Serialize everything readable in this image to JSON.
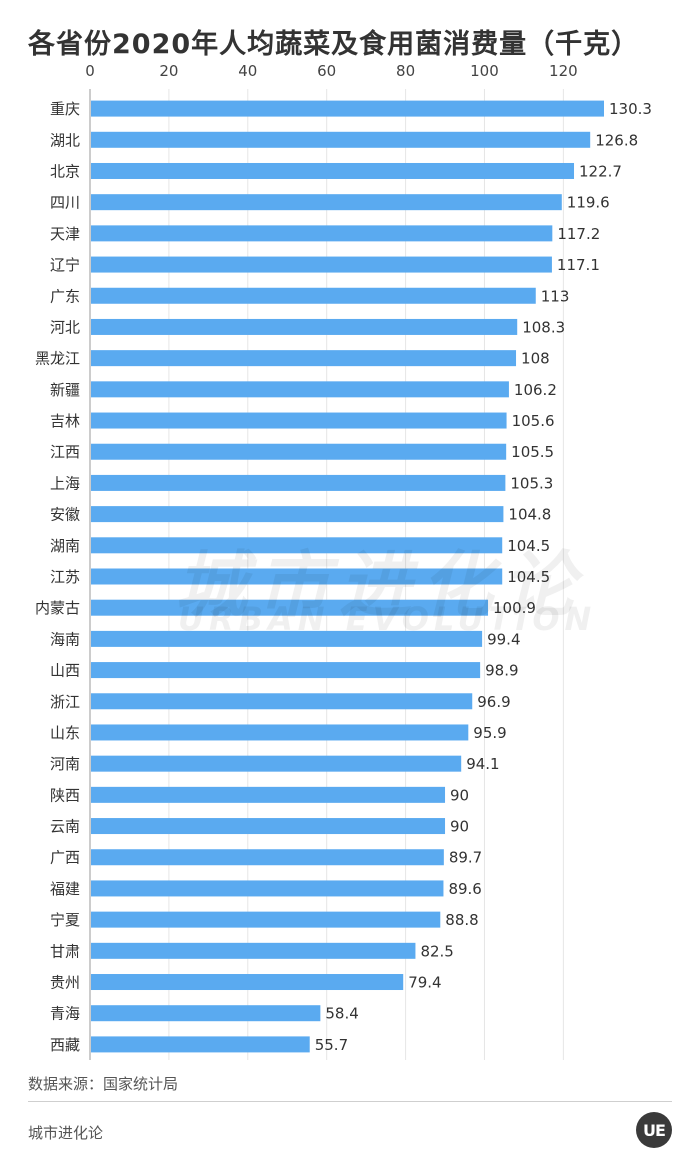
{
  "title": "各省份2020年人均蔬菜及食用菌消费量（千克）",
  "source": "数据来源：国家统计局",
  "brand": "城市进化论",
  "logo_text": "UE",
  "watermark": {
    "cn": "城市进化论",
    "en": "URBAN EVOLUTION"
  },
  "colors": {
    "bar": "#5aaaf0",
    "grid": "#e6e6e6",
    "text": "#333333"
  },
  "chart_data": {
    "type": "bar",
    "orientation": "horizontal",
    "title": "各省份2020年人均蔬菜及食用菌消费量（千克）",
    "xlim": [
      0,
      130.3
    ],
    "xticks": [
      0,
      20,
      40,
      60,
      80,
      100,
      120
    ],
    "axis_position": "top",
    "grid": true,
    "categories": [
      "重庆",
      "湖北",
      "北京",
      "四川",
      "天津",
      "辽宁",
      "广东",
      "河北",
      "黑龙江",
      "新疆",
      "吉林",
      "江西",
      "上海",
      "安徽",
      "湖南",
      "江苏",
      "内蒙古",
      "海南",
      "山西",
      "浙江",
      "山东",
      "河南",
      "陕西",
      "云南",
      "广西",
      "福建",
      "宁夏",
      "甘肃",
      "贵州",
      "青海",
      "西藏"
    ],
    "values": [
      130.3,
      126.8,
      122.7,
      119.6,
      117.2,
      117.1,
      113,
      108.3,
      108,
      106.2,
      105.6,
      105.5,
      105.3,
      104.8,
      104.5,
      104.5,
      100.9,
      99.4,
      98.9,
      96.9,
      95.9,
      94.1,
      90,
      90,
      89.7,
      89.6,
      88.8,
      82.5,
      79.4,
      58.4,
      55.7
    ],
    "value_labels": [
      "130.3",
      "126.8",
      "122.7",
      "119.6",
      "117.2",
      "117.1",
      "113",
      "108.3",
      "108",
      "106.2",
      "105.6",
      "105.5",
      "105.3",
      "104.8",
      "104.5",
      "104.5",
      "100.9",
      "99.4",
      "98.9",
      "96.9",
      "95.9",
      "94.1",
      "90",
      "90",
      "89.7",
      "89.6",
      "88.8",
      "82.5",
      "79.4",
      "58.4",
      "55.7"
    ]
  }
}
